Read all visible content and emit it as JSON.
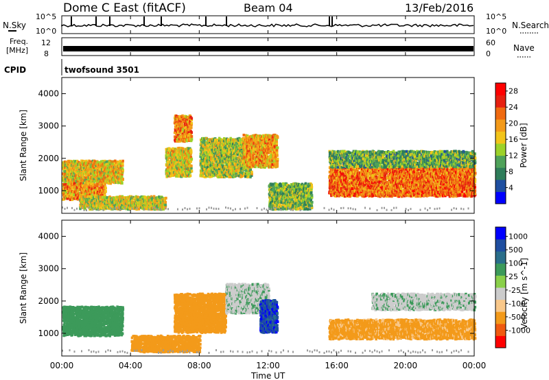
{
  "header": {
    "station": "Dome C East (fitACF)",
    "beam": "Beam 04",
    "date": "13/Feb/2016"
  },
  "strips": {
    "nsky_label": "N.Sky",
    "nsky_ticks": [
      "10^5",
      "10^0"
    ],
    "nsearch_label": "N.Search",
    "nsearch_ticks": [
      "10^5",
      "10^0"
    ],
    "freq_label_top": "Freq.",
    "freq_label_bottom": "[MHz]",
    "freq_ticks": [
      "12",
      "8"
    ],
    "nave_label": "Nave",
    "nave_ticks": [
      "60",
      "0"
    ],
    "cpid_label": "CPID",
    "cpid_value": "twofsound 3501"
  },
  "colors": {
    "power": [
      "#0000ff",
      "#1f4fa0",
      "#2f7d5a",
      "#4fa25a",
      "#9cd22a",
      "#f2c41a",
      "#f39a1a",
      "#f06a10",
      "#e62010",
      "#ff0000"
    ],
    "velocity": [
      "#ff0000",
      "#f05a10",
      "#f39a1a",
      "#f9c88a",
      "#cccccc",
      "#8ad04a",
      "#3c9a5a",
      "#2a6e8a",
      "#1f4ea0",
      "#0000ff"
    ],
    "ground": "#999999"
  },
  "chart_data": [
    {
      "type": "heatmap",
      "panel": "power",
      "ylabel": "Slant Range [km]",
      "xlabel": "Time UT",
      "y_ticks": [
        1000,
        2000,
        3000,
        4000
      ],
      "ylim": [
        300,
        4500
      ],
      "x_ticks": [
        "00:00",
        "04:00",
        "08:00",
        "12:00",
        "16:00",
        "20:00",
        "00:00"
      ],
      "xlim_hours": [
        0,
        24
      ],
      "colorbar": {
        "label": "Power [dB]",
        "ticks": [
          "28",
          "24",
          "20",
          "16",
          "12",
          "8",
          "4"
        ],
        "range": [
          0,
          30
        ]
      },
      "regions": [
        {
          "t": [
            0.0,
            3.5
          ],
          "r": [
            1200,
            1900
          ],
          "v": 17
        },
        {
          "t": [
            0.0,
            2.5
          ],
          "r": [
            700,
            1200
          ],
          "v": 20
        },
        {
          "t": [
            1.0,
            6.0
          ],
          "r": [
            400,
            800
          ],
          "v": 15
        },
        {
          "t": [
            6.0,
            7.5
          ],
          "r": [
            1400,
            2300
          ],
          "v": 16
        },
        {
          "t": [
            6.5,
            7.5
          ],
          "r": [
            2500,
            3300
          ],
          "v": 20
        },
        {
          "t": [
            8.0,
            11.0
          ],
          "r": [
            1400,
            2600
          ],
          "v": 14
        },
        {
          "t": [
            10.5,
            12.5
          ],
          "r": [
            1700,
            2700
          ],
          "v": 19
        },
        {
          "t": [
            12.0,
            14.5
          ],
          "r": [
            400,
            1200
          ],
          "v": 12
        },
        {
          "t": [
            15.5,
            24.0
          ],
          "r": [
            800,
            1700
          ],
          "v": 22
        },
        {
          "t": [
            15.5,
            24.0
          ],
          "r": [
            1700,
            2200
          ],
          "v": 11
        }
      ]
    },
    {
      "type": "heatmap",
      "panel": "velocity",
      "ylabel": "Slant Range [km]",
      "xlabel": "Time UT",
      "y_ticks": [
        1000,
        2000,
        3000,
        4000
      ],
      "ylim": [
        300,
        4500
      ],
      "x_ticks": [
        "00:00",
        "04:00",
        "08:00",
        "12:00",
        "16:00",
        "20:00",
        "00:00"
      ],
      "xlim_hours": [
        0,
        24
      ],
      "colorbar": {
        "label": "Velocity [m s^-1]",
        "ticks": [
          "1000",
          "500",
          "100",
          "25",
          "-25",
          "-100",
          "-500",
          "-1000"
        ],
        "range": [
          -1000,
          1000
        ]
      },
      "regions": [
        {
          "t": [
            0.0,
            3.5
          ],
          "r": [
            900,
            1800
          ],
          "v": 50
        },
        {
          "t": [
            4.0,
            8.0
          ],
          "r": [
            400,
            900
          ],
          "v": -300
        },
        {
          "t": [
            6.5,
            9.5
          ],
          "r": [
            1000,
            2200
          ],
          "v": -200
        },
        {
          "t": [
            9.5,
            12.0
          ],
          "r": [
            1600,
            2500
          ],
          "v": 10
        },
        {
          "t": [
            11.5,
            12.5
          ],
          "r": [
            1000,
            2000
          ],
          "v": 800
        },
        {
          "t": [
            15.5,
            24.0
          ],
          "r": [
            800,
            1400
          ],
          "v": -150
        },
        {
          "t": [
            18.0,
            24.0
          ],
          "r": [
            1700,
            2200
          ],
          "v": 10
        }
      ]
    }
  ]
}
